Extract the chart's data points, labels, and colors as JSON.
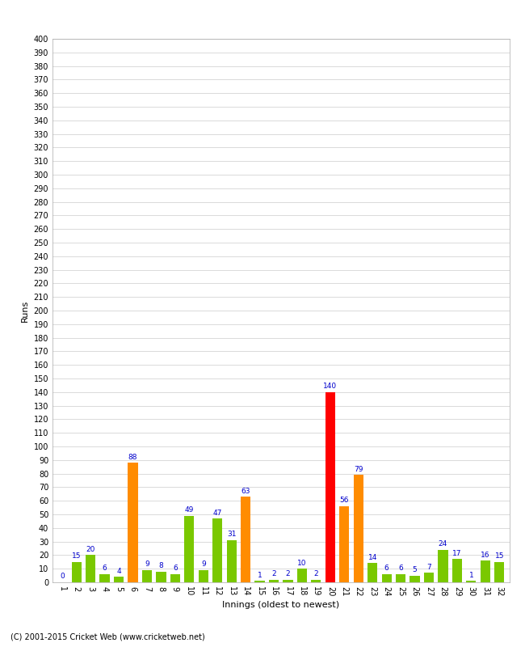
{
  "xlabel": "Innings (oldest to newest)",
  "ylabel": "Runs",
  "innings": [
    1,
    2,
    3,
    4,
    5,
    6,
    7,
    8,
    9,
    10,
    11,
    12,
    13,
    14,
    15,
    16,
    17,
    18,
    19,
    20,
    21,
    22,
    23,
    24,
    25,
    26,
    27,
    28,
    29,
    30,
    31,
    32
  ],
  "values": [
    0,
    15,
    20,
    6,
    4,
    88,
    9,
    8,
    6,
    49,
    9,
    47,
    31,
    63,
    1,
    2,
    2,
    10,
    2,
    140,
    56,
    79,
    14,
    6,
    6,
    5,
    7,
    24,
    17,
    1,
    16,
    15
  ],
  "colors": [
    "#7ac800",
    "#7ac800",
    "#7ac800",
    "#7ac800",
    "#7ac800",
    "#ff8c00",
    "#7ac800",
    "#7ac800",
    "#7ac800",
    "#7ac800",
    "#7ac800",
    "#7ac800",
    "#7ac800",
    "#ff8c00",
    "#7ac800",
    "#7ac800",
    "#7ac800",
    "#7ac800",
    "#7ac800",
    "#ff0000",
    "#ff8c00",
    "#ff8c00",
    "#7ac800",
    "#7ac800",
    "#7ac800",
    "#7ac800",
    "#7ac800",
    "#7ac800",
    "#7ac800",
    "#7ac800",
    "#7ac800",
    "#7ac800"
  ],
  "ylim": [
    0,
    400
  ],
  "background_color": "#ffffff",
  "grid_color": "#cccccc",
  "label_color": "#0000cc",
  "footer": "(C) 2001-2015 Cricket Web (www.cricketweb.net)"
}
